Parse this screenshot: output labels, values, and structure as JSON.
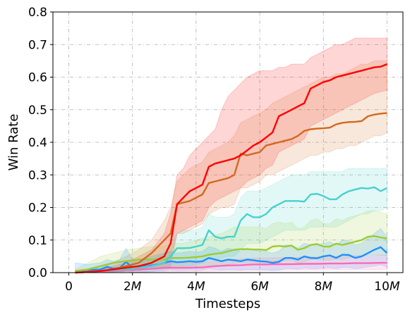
{
  "chart_data": {
    "type": "line",
    "xlabel": "Timesteps",
    "ylabel": "Win Rate",
    "xlim": [
      -0.5,
      10.5
    ],
    "ylim": [
      0,
      0.8
    ],
    "x_unit": "M",
    "x_ticks": [
      0,
      2,
      4,
      6,
      8,
      10
    ],
    "x_tick_labels": [
      "0",
      "2M",
      "4M",
      "6M",
      "8M",
      "10M"
    ],
    "y_ticks": [
      0.0,
      0.1,
      0.2,
      0.3,
      0.4,
      0.5,
      0.6,
      0.7,
      0.8
    ],
    "y_tick_labels": [
      "0.0",
      "0.1",
      "0.2",
      "0.3",
      "0.4",
      "0.5",
      "0.6",
      "0.7",
      "0.8"
    ],
    "grid": true,
    "legend": "none",
    "series": [
      {
        "color": "#ff0000",
        "x": [
          0.2,
          0.6,
          1.0,
          1.4,
          1.8,
          2.2,
          2.6,
          3.0,
          3.2,
          3.4,
          3.6,
          3.8,
          4.0,
          4.2,
          4.4,
          4.6,
          4.8,
          5.0,
          5.2,
          5.4,
          5.6,
          5.8,
          6.0,
          6.2,
          6.4,
          6.6,
          6.8,
          7.0,
          7.2,
          7.4,
          7.6,
          7.8,
          8.0,
          8.2,
          8.4,
          8.6,
          8.8,
          9.0,
          9.2,
          9.4,
          9.6,
          9.8,
          10.0
        ],
        "y": [
          0.0,
          0.002,
          0.005,
          0.01,
          0.015,
          0.02,
          0.03,
          0.05,
          0.09,
          0.21,
          0.23,
          0.25,
          0.26,
          0.27,
          0.325,
          0.335,
          0.34,
          0.345,
          0.35,
          0.36,
          0.375,
          0.39,
          0.4,
          0.415,
          0.43,
          0.48,
          0.49,
          0.5,
          0.51,
          0.52,
          0.565,
          0.575,
          0.585,
          0.59,
          0.6,
          0.605,
          0.61,
          0.615,
          0.62,
          0.625,
          0.63,
          0.632,
          0.64
        ],
        "band_low": [
          0.0,
          0.0,
          0.0,
          0.002,
          0.004,
          0.006,
          0.01,
          0.015,
          0.02,
          0.12,
          0.13,
          0.14,
          0.15,
          0.16,
          0.2,
          0.22,
          0.23,
          0.24,
          0.25,
          0.26,
          0.28,
          0.29,
          0.3,
          0.32,
          0.33,
          0.37,
          0.38,
          0.39,
          0.4,
          0.41,
          0.45,
          0.46,
          0.47,
          0.48,
          0.49,
          0.5,
          0.51,
          0.52,
          0.53,
          0.54,
          0.55,
          0.555,
          0.56
        ],
        "band_high": [
          0.0,
          0.005,
          0.01,
          0.02,
          0.03,
          0.05,
          0.07,
          0.12,
          0.18,
          0.3,
          0.32,
          0.36,
          0.38,
          0.4,
          0.42,
          0.44,
          0.5,
          0.54,
          0.56,
          0.58,
          0.6,
          0.61,
          0.62,
          0.62,
          0.62,
          0.63,
          0.63,
          0.64,
          0.64,
          0.64,
          0.66,
          0.67,
          0.68,
          0.69,
          0.7,
          0.7,
          0.71,
          0.72,
          0.72,
          0.72,
          0.72,
          0.72,
          0.72
        ]
      },
      {
        "color": "#d2691e",
        "x": [
          0.2,
          0.6,
          1.0,
          1.4,
          1.8,
          2.2,
          2.6,
          3.0,
          3.2,
          3.4,
          3.6,
          3.8,
          4.0,
          4.2,
          4.4,
          4.6,
          4.8,
          5.0,
          5.2,
          5.4,
          5.6,
          5.8,
          6.0,
          6.2,
          6.4,
          6.6,
          6.8,
          7.0,
          7.2,
          7.4,
          7.6,
          7.8,
          8.0,
          8.2,
          8.4,
          8.6,
          8.8,
          9.0,
          9.2,
          9.4,
          9.6,
          9.8,
          10.0
        ],
        "y": [
          0.0,
          0.002,
          0.005,
          0.01,
          0.02,
          0.03,
          0.06,
          0.1,
          0.12,
          0.21,
          0.215,
          0.22,
          0.23,
          0.24,
          0.275,
          0.28,
          0.285,
          0.29,
          0.3,
          0.365,
          0.36,
          0.365,
          0.37,
          0.39,
          0.395,
          0.4,
          0.405,
          0.41,
          0.42,
          0.435,
          0.44,
          0.442,
          0.443,
          0.445,
          0.455,
          0.46,
          0.462,
          0.463,
          0.465,
          0.48,
          0.485,
          0.488,
          0.49
        ],
        "band_low": [
          0.0,
          0.0,
          0.0,
          0.002,
          0.005,
          0.01,
          0.02,
          0.04,
          0.05,
          0.12,
          0.12,
          0.13,
          0.14,
          0.15,
          0.18,
          0.19,
          0.2,
          0.2,
          0.21,
          0.26,
          0.26,
          0.27,
          0.28,
          0.3,
          0.3,
          0.31,
          0.32,
          0.33,
          0.34,
          0.35,
          0.36,
          0.36,
          0.37,
          0.37,
          0.38,
          0.38,
          0.39,
          0.39,
          0.4,
          0.41,
          0.42,
          0.42,
          0.43
        ],
        "band_high": [
          0.0,
          0.01,
          0.02,
          0.03,
          0.05,
          0.07,
          0.1,
          0.16,
          0.2,
          0.28,
          0.3,
          0.32,
          0.33,
          0.34,
          0.37,
          0.38,
          0.39,
          0.4,
          0.42,
          0.46,
          0.47,
          0.48,
          0.49,
          0.5,
          0.52,
          0.53,
          0.54,
          0.55,
          0.56,
          0.57,
          0.58,
          0.59,
          0.6,
          0.6,
          0.61,
          0.61,
          0.62,
          0.63,
          0.64,
          0.64,
          0.65,
          0.65,
          0.65
        ]
      },
      {
        "color": "#48d1cc",
        "x": [
          0.2,
          0.6,
          1.0,
          1.4,
          1.8,
          2.2,
          2.6,
          3.0,
          3.2,
          3.4,
          3.6,
          3.8,
          4.0,
          4.2,
          4.4,
          4.6,
          4.8,
          5.0,
          5.2,
          5.4,
          5.6,
          5.8,
          6.0,
          6.2,
          6.4,
          6.6,
          6.8,
          7.0,
          7.2,
          7.4,
          7.6,
          7.8,
          8.0,
          8.2,
          8.4,
          8.6,
          8.8,
          9.0,
          9.2,
          9.4,
          9.6,
          9.8,
          10.0
        ],
        "y": [
          0.0,
          0.002,
          0.005,
          0.008,
          0.01,
          0.015,
          0.02,
          0.03,
          0.05,
          0.075,
          0.075,
          0.076,
          0.08,
          0.085,
          0.13,
          0.11,
          0.105,
          0.11,
          0.11,
          0.16,
          0.18,
          0.17,
          0.17,
          0.18,
          0.2,
          0.21,
          0.22,
          0.22,
          0.22,
          0.218,
          0.24,
          0.242,
          0.235,
          0.225,
          0.225,
          0.24,
          0.25,
          0.255,
          0.26,
          0.258,
          0.262,
          0.25,
          0.26
        ],
        "band_low": [
          0.0,
          0.0,
          0.0,
          0.0,
          0.0,
          0.002,
          0.005,
          0.01,
          0.015,
          0.02,
          0.02,
          0.02,
          0.025,
          0.03,
          0.04,
          0.04,
          0.045,
          0.05,
          0.05,
          0.07,
          0.09,
          0.09,
          0.09,
          0.1,
          0.11,
          0.12,
          0.13,
          0.13,
          0.13,
          0.13,
          0.14,
          0.14,
          0.14,
          0.14,
          0.14,
          0.15,
          0.16,
          0.17,
          0.18,
          0.18,
          0.19,
          0.19,
          0.2
        ],
        "band_high": [
          0.0,
          0.005,
          0.01,
          0.015,
          0.02,
          0.03,
          0.04,
          0.06,
          0.09,
          0.12,
          0.13,
          0.13,
          0.13,
          0.14,
          0.18,
          0.17,
          0.17,
          0.17,
          0.18,
          0.23,
          0.25,
          0.25,
          0.25,
          0.26,
          0.27,
          0.28,
          0.29,
          0.3,
          0.3,
          0.3,
          0.31,
          0.31,
          0.31,
          0.31,
          0.31,
          0.31,
          0.32,
          0.32,
          0.32,
          0.32,
          0.32,
          0.32,
          0.32
        ]
      },
      {
        "color": "#9acd32",
        "x": [
          0.2,
          0.6,
          1.0,
          1.4,
          1.8,
          2.2,
          2.6,
          3.0,
          3.2,
          3.4,
          3.6,
          3.8,
          4.0,
          4.2,
          4.4,
          4.6,
          4.8,
          5.0,
          5.2,
          5.4,
          5.6,
          5.8,
          6.0,
          6.2,
          6.4,
          6.6,
          6.8,
          7.0,
          7.2,
          7.4,
          7.6,
          7.8,
          8.0,
          8.2,
          8.4,
          8.6,
          8.8,
          9.0,
          9.2,
          9.4,
          9.6,
          9.8,
          10.0
        ],
        "y": [
          0.005,
          0.01,
          0.02,
          0.03,
          0.035,
          0.04,
          0.04,
          0.04,
          0.045,
          0.045,
          0.045,
          0.046,
          0.048,
          0.05,
          0.055,
          0.058,
          0.06,
          0.065,
          0.07,
          0.072,
          0.072,
          0.071,
          0.071,
          0.069,
          0.08,
          0.082,
          0.08,
          0.083,
          0.07,
          0.075,
          0.085,
          0.088,
          0.08,
          0.08,
          0.089,
          0.085,
          0.09,
          0.095,
          0.1,
          0.11,
          0.112,
          0.108,
          0.105
        ],
        "band_low": [
          0.0,
          0.0,
          0.0,
          0.005,
          0.01,
          0.01,
          0.01,
          0.01,
          0.012,
          0.012,
          0.012,
          0.013,
          0.015,
          0.016,
          0.018,
          0.02,
          0.022,
          0.025,
          0.028,
          0.03,
          0.03,
          0.03,
          0.03,
          0.03,
          0.035,
          0.037,
          0.035,
          0.037,
          0.03,
          0.033,
          0.04,
          0.042,
          0.038,
          0.038,
          0.042,
          0.04,
          0.045,
          0.048,
          0.05,
          0.055,
          0.056,
          0.054,
          0.052
        ],
        "band_high": [
          0.01,
          0.03,
          0.05,
          0.06,
          0.07,
          0.075,
          0.08,
          0.08,
          0.09,
          0.09,
          0.09,
          0.095,
          0.1,
          0.105,
          0.11,
          0.115,
          0.12,
          0.13,
          0.14,
          0.14,
          0.14,
          0.14,
          0.14,
          0.135,
          0.15,
          0.155,
          0.15,
          0.155,
          0.135,
          0.14,
          0.16,
          0.165,
          0.15,
          0.15,
          0.165,
          0.16,
          0.17,
          0.175,
          0.18,
          0.19,
          0.19,
          0.185,
          0.18
        ]
      },
      {
        "color": "#1e90ff",
        "x": [
          0.2,
          0.6,
          1.0,
          1.2,
          1.4,
          1.6,
          1.8,
          2.0,
          2.2,
          2.4,
          2.6,
          2.8,
          3.0,
          3.2,
          3.4,
          3.6,
          3.8,
          4.0,
          4.2,
          4.4,
          4.6,
          4.8,
          5.0,
          5.2,
          5.4,
          5.6,
          5.8,
          6.0,
          6.2,
          6.4,
          6.6,
          6.8,
          7.0,
          7.2,
          7.4,
          7.6,
          7.8,
          8.0,
          8.2,
          8.4,
          8.6,
          8.8,
          9.0,
          9.2,
          9.4,
          9.6,
          9.8,
          10.0
        ],
        "y": [
          0.005,
          0.008,
          0.01,
          0.018,
          0.012,
          0.015,
          0.033,
          0.015,
          0.015,
          0.02,
          0.022,
          0.025,
          0.03,
          0.035,
          0.032,
          0.033,
          0.035,
          0.033,
          0.035,
          0.045,
          0.04,
          0.035,
          0.04,
          0.038,
          0.035,
          0.04,
          0.038,
          0.035,
          0.034,
          0.03,
          0.033,
          0.045,
          0.045,
          0.04,
          0.05,
          0.045,
          0.044,
          0.05,
          0.053,
          0.045,
          0.055,
          0.054,
          0.045,
          0.05,
          0.06,
          0.07,
          0.078,
          0.06
        ],
        "band_low": [
          0.0,
          0.0,
          0.0,
          0.0,
          0.0,
          0.0,
          0.005,
          0.0,
          0.0,
          0.002,
          0.003,
          0.004,
          0.005,
          0.008,
          0.006,
          0.007,
          0.008,
          0.007,
          0.008,
          0.012,
          0.01,
          0.008,
          0.01,
          0.009,
          0.008,
          0.01,
          0.009,
          0.008,
          0.008,
          0.006,
          0.007,
          0.012,
          0.012,
          0.01,
          0.014,
          0.012,
          0.012,
          0.014,
          0.015,
          0.012,
          0.016,
          0.016,
          0.012,
          0.014,
          0.018,
          0.02,
          0.024,
          0.018
        ],
        "band_high": [
          0.03,
          0.025,
          0.03,
          0.04,
          0.035,
          0.04,
          0.075,
          0.04,
          0.04,
          0.045,
          0.05,
          0.055,
          0.06,
          0.065,
          0.06,
          0.062,
          0.065,
          0.062,
          0.065,
          0.08,
          0.075,
          0.065,
          0.075,
          0.07,
          0.065,
          0.075,
          0.07,
          0.065,
          0.065,
          0.06,
          0.065,
          0.085,
          0.085,
          0.075,
          0.09,
          0.085,
          0.083,
          0.09,
          0.095,
          0.085,
          0.1,
          0.098,
          0.085,
          0.09,
          0.105,
          0.12,
          0.135,
          0.11
        ]
      },
      {
        "color": "#ff69b4",
        "x": [
          0.2,
          0.6,
          1.0,
          1.4,
          1.8,
          2.2,
          2.6,
          3.0,
          3.4,
          3.8,
          4.2,
          4.6,
          5.0,
          5.4,
          5.8,
          6.2,
          6.6,
          7.0,
          7.4,
          7.8,
          8.2,
          8.6,
          9.0,
          9.4,
          9.8,
          10.0
        ],
        "y": [
          0.0,
          0.002,
          0.004,
          0.006,
          0.008,
          0.01,
          0.012,
          0.015,
          0.015,
          0.015,
          0.016,
          0.02,
          0.022,
          0.023,
          0.025,
          0.025,
          0.026,
          0.026,
          0.027,
          0.027,
          0.028,
          0.028,
          0.029,
          0.029,
          0.03,
          0.03
        ],
        "band_low": [
          0.0,
          0.0,
          0.0,
          0.0,
          0.0,
          0.001,
          0.002,
          0.003,
          0.003,
          0.003,
          0.004,
          0.005,
          0.006,
          0.006,
          0.007,
          0.007,
          0.008,
          0.008,
          0.008,
          0.008,
          0.009,
          0.009,
          0.009,
          0.009,
          0.01,
          0.01
        ],
        "band_high": [
          0.005,
          0.008,
          0.012,
          0.015,
          0.018,
          0.022,
          0.025,
          0.03,
          0.03,
          0.03,
          0.032,
          0.036,
          0.04,
          0.042,
          0.045,
          0.045,
          0.046,
          0.046,
          0.048,
          0.048,
          0.05,
          0.05,
          0.052,
          0.052,
          0.054,
          0.054
        ]
      }
    ]
  }
}
